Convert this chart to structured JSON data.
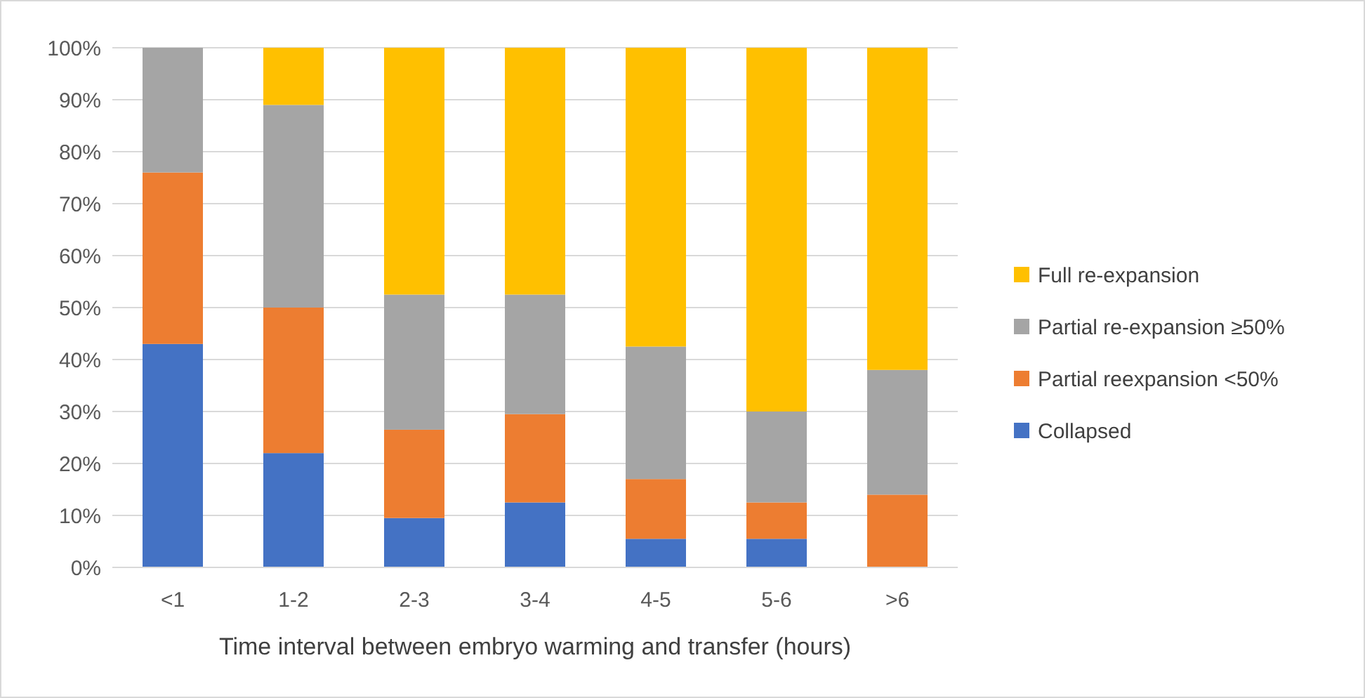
{
  "chart_data": {
    "type": "bar",
    "stacked": true,
    "xlabel": "Time interval between embryo warming and transfer (hours)",
    "categories": [
      "<1",
      "1-2",
      "2-3",
      "3-4",
      "4-5",
      "5-6",
      ">6"
    ],
    "series": [
      {
        "name": "Collapsed",
        "color": "#4472c4",
        "values": [
          43,
          22,
          9.5,
          12.5,
          5.5,
          5.5,
          0
        ]
      },
      {
        "name": "Partial reexpansion <50%",
        "color": "#ed7d31",
        "values": [
          33,
          28,
          17,
          17,
          11.5,
          7,
          14
        ]
      },
      {
        "name": "Partial re-expansion ≥50%",
        "color": "#a5a5a5",
        "values": [
          24,
          39,
          26,
          23,
          25.5,
          17.5,
          24
        ]
      },
      {
        "name": "Full re-expansion",
        "color": "#ffc000",
        "values": [
          0,
          11,
          47.5,
          47.5,
          57.5,
          70,
          62
        ]
      }
    ],
    "ylim": [
      0,
      100
    ],
    "yticks": [
      {
        "value": 0,
        "label": "0%"
      },
      {
        "value": 10,
        "label": "10%"
      },
      {
        "value": 20,
        "label": "20%"
      },
      {
        "value": 30,
        "label": "30%"
      },
      {
        "value": 40,
        "label": "40%"
      },
      {
        "value": 50,
        "label": "50%"
      },
      {
        "value": 60,
        "label": "60%"
      },
      {
        "value": 70,
        "label": "70%"
      },
      {
        "value": 80,
        "label": "80%"
      },
      {
        "value": 90,
        "label": "90%"
      },
      {
        "value": 100,
        "label": "100%"
      }
    ],
    "grid": "y",
    "legend": "right"
  }
}
